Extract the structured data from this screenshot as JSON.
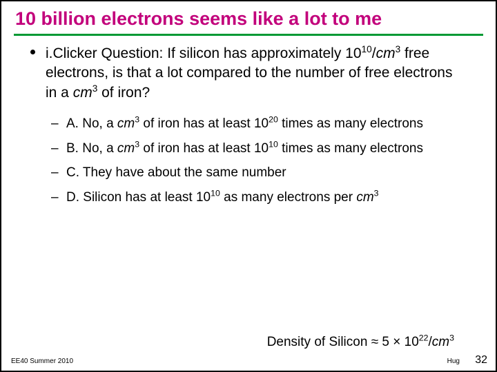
{
  "title": {
    "text": "10 billion electrons seems like a lot to me",
    "color": "#c2007b",
    "fontsize": 27
  },
  "rule_color": "#009933",
  "question": {
    "pre": "i.Clicker Question: If silicon has approximately ",
    "val1_base": "10",
    "val1_exp": "10",
    "over": "/",
    "unit1_base": "cm",
    "unit1_exp": "3",
    "mid": " free electrons, is that a lot compared to the number of free electrons in a ",
    "unit2_base": "cm",
    "unit2_exp": "3",
    "post": " of iron?"
  },
  "options": [
    {
      "pre": "A. No, a ",
      "ub": "cm",
      "ue": "3",
      "mid": " of iron has at least ",
      "vb": "10",
      "ve": "20",
      "post": " times as many electrons"
    },
    {
      "pre": "B. No, a ",
      "ub": "cm",
      "ue": "3",
      "mid": " of iron has at least ",
      "vb": "10",
      "ve": "10",
      "post": " times as many electrons"
    },
    {
      "pre": "C. They have about the same number",
      "ub": "",
      "ue": "",
      "mid": "",
      "vb": "",
      "ve": "",
      "post": ""
    },
    {
      "pre": "D. Silicon has at least ",
      "ub": "",
      "ue": "",
      "mid": "",
      "vb": "10",
      "ve": "10",
      "post": " as many electrons per ",
      "tail_b": "cm",
      "tail_e": "3"
    }
  ],
  "density": {
    "label": "Density of Silicon ",
    "approx": "≈ 5 × ",
    "base": "10",
    "exp": "22",
    "over": "/",
    "ub": "cm",
    "ue": "3"
  },
  "footer": {
    "left": "EE40 Summer 2010",
    "right": "Hug",
    "num": "32"
  },
  "colors": {
    "text": "#000000",
    "bg": "#ffffff"
  }
}
